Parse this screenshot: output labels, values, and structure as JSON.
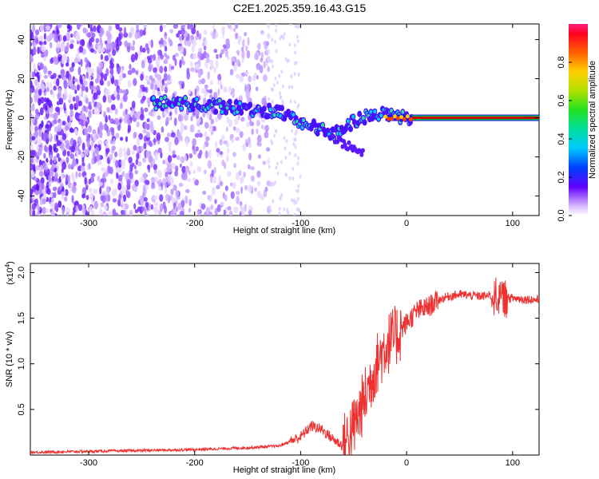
{
  "title": "C2E1.2025.359.16.43.G15",
  "colors": {
    "snr_line": "#ee3030",
    "band_center": "#cc0000",
    "band_edge": "#00c040",
    "scatter_purple": "#6a1cff"
  },
  "chart_data": [
    {
      "type": "heatmap",
      "xlabel": "Height of straight line (km)",
      "ylabel": "Frequency (Hz)",
      "xlim": [
        -355,
        125
      ],
      "ylim": [
        -50,
        48
      ],
      "x_ticks": [
        -300,
        -200,
        -100,
        0,
        100
      ],
      "y_ticks": [
        -40,
        -20,
        0,
        20,
        40
      ],
      "colorbar": {
        "label": "Normalized spectral amplitude",
        "range": [
          0.0,
          1.0
        ],
        "ticks": [
          "0.0",
          "0.2",
          "0.4",
          "0.6",
          "0.8"
        ],
        "tick_values": [
          0.0,
          0.2,
          0.4,
          0.6,
          0.8
        ]
      },
      "features": {
        "noise_region_x": [
          -355,
          -130
        ],
        "signal_track": {
          "x": [
            -240,
            -200,
            -160,
            -120,
            -90,
            -70,
            -50,
            -30,
            -10,
            5,
            125
          ],
          "y": [
            8,
            7,
            5,
            3,
            -4,
            -8,
            -2,
            2,
            1,
            0,
            0
          ]
        },
        "steady_band_x": [
          5,
          125
        ],
        "steady_band_y": 0
      }
    },
    {
      "type": "line",
      "xlabel": "Height of straight line (km)",
      "ylabel": "SNR (10 * v/v)",
      "y_multiplier": "(x10",
      "y_multiplier_exp": "4",
      "xlim": [
        -355,
        125
      ],
      "ylim": [
        0,
        2.1
      ],
      "x_ticks": [
        -300,
        -200,
        -100,
        0,
        100
      ],
      "y_ticks": [
        0.5,
        1.0,
        1.5,
        2.0
      ],
      "y_tick_labels": [
        "0.5",
        "1.0",
        "1.5",
        "2.0"
      ],
      "series": [
        {
          "x": [
            -355,
            -300,
            -250,
            -200,
            -150,
            -120,
            -100,
            -90,
            -80,
            -70,
            -60,
            -50,
            -40,
            -30,
            -20,
            -10,
            0,
            10,
            20,
            30,
            40,
            50,
            60,
            70,
            80,
            90,
            100,
            110,
            125
          ],
          "y": [
            0.03,
            0.04,
            0.05,
            0.06,
            0.08,
            0.1,
            0.2,
            0.32,
            0.28,
            0.18,
            0.1,
            0.3,
            0.6,
            0.95,
            1.2,
            1.3,
            1.45,
            1.58,
            1.62,
            1.7,
            1.74,
            1.76,
            1.75,
            1.74,
            1.75,
            1.72,
            1.72,
            1.71,
            1.7
          ]
        }
      ]
    }
  ]
}
